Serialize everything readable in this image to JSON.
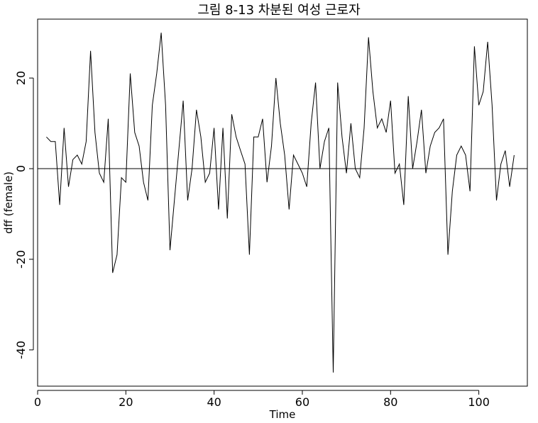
{
  "chart_data": {
    "type": "line",
    "title": "그림 8-13 차분된 여성 근로자",
    "xlabel": "Time",
    "ylabel": "dff (female)",
    "xlim": [
      0,
      111
    ],
    "ylim": [
      -48,
      33
    ],
    "x_ticks": [
      0,
      20,
      40,
      60,
      80,
      100
    ],
    "y_ticks": [
      -40,
      -20,
      0,
      20
    ],
    "reference_line_y": 0,
    "line_color": "#000000",
    "x_start": 2,
    "values": [
      7,
      6,
      6,
      -8,
      9,
      -4,
      2,
      3,
      1,
      6,
      26,
      8,
      -1,
      -3,
      11,
      -23,
      -19,
      -2,
      -3,
      21,
      8,
      5,
      -3,
      -7,
      14,
      21,
      30,
      14,
      -18,
      -7,
      4,
      15,
      -7,
      0,
      13,
      7,
      -3,
      -1,
      9,
      -9,
      9,
      -11,
      12,
      7,
      4,
      1,
      -19,
      7,
      7,
      11,
      -3,
      5,
      20,
      10,
      3,
      -9,
      3,
      1,
      -1,
      -4,
      10,
      19,
      0,
      6,
      9,
      -45,
      19,
      7,
      -1,
      10,
      0,
      -2,
      9,
      29,
      17,
      9,
      11,
      8,
      15,
      -1,
      1,
      -8,
      16,
      0,
      6,
      13,
      -1,
      5,
      8,
      9,
      11,
      -19,
      -5,
      3,
      5,
      3,
      -5,
      27,
      14,
      17,
      28,
      14,
      -7,
      1,
      4,
      -4,
      3
    ]
  }
}
